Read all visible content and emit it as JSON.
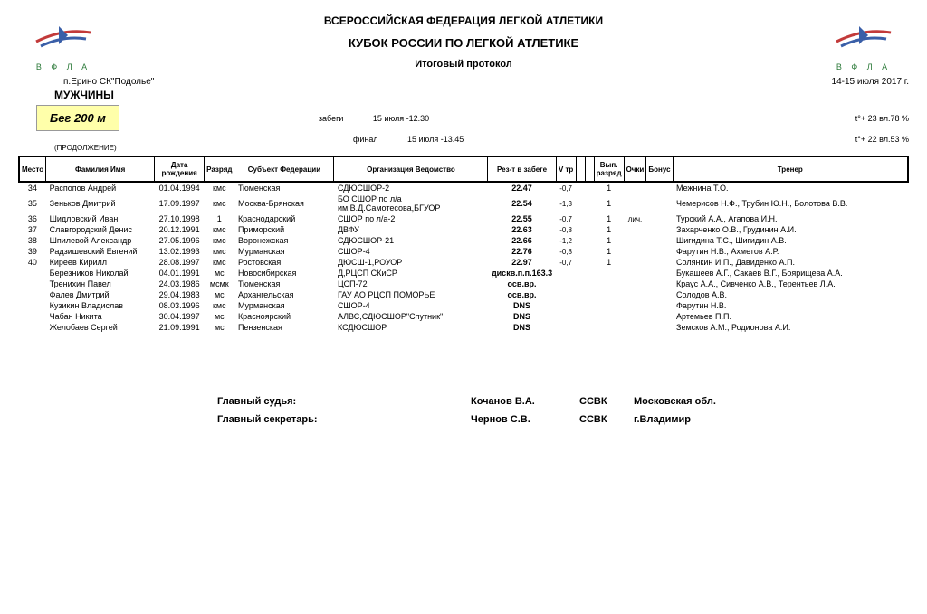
{
  "federation": "ВСЕРОССИЙСКАЯ ФЕДЕРАЦИЯ ЛЕГКОЙ АТЛЕТИКИ",
  "title": "КУБОК РОССИИ ПО ЛЕГКОЙ АТЛЕТИКЕ",
  "subtitle": "Итоговый протокол",
  "venue": "п.Ерино СК\"Подолье\"",
  "dates": "14-15 июля 2017 г.",
  "gender": "МУЖЧИНЫ",
  "event": "Бег 200 м",
  "heats_label": "забеги",
  "heats_time": "15 июля -12.30",
  "heats_cond": "t°+ 23  вл.78 %",
  "final_label": "финал",
  "final_time": "15 июля -13.45",
  "final_cond": "t°+ 22  вл.53 %",
  "continuation": "(ПРОДОЛЖЕНИЕ)",
  "logo_text": "В Ф Л А",
  "columns": {
    "place": "Место",
    "name": "Фамилия Имя",
    "dob": "Дата рождения",
    "rank": "Разряд",
    "subject": "Субъект Федерации",
    "org": "Организация Ведомство",
    "result": "Рез-т в забеге",
    "vtr": "V тр",
    "vyp": "Вып. разряд",
    "points": "Очки",
    "bonus": "Бонус",
    "coach": "Тренер"
  },
  "rows": [
    {
      "place": "34",
      "name": "Распопов  Андрей",
      "dob": "01.04.1994",
      "rank": "кмс",
      "subject": "Тюменская",
      "org": "СДЮСШОР-2",
      "result": "22.47",
      "vtr": "-0,7",
      "vyp": "1",
      "note": "",
      "coach": "Межнина Т.О."
    },
    {
      "place": "35",
      "name": "Зеньков  Дмитрий",
      "dob": "17.09.1997",
      "rank": "кмс",
      "subject": "Москва-Брянская",
      "org": "БО СШОР по л/а им.В.Д.Самотесова,БГУОР",
      "result": "22.54",
      "vtr": "-1,3",
      "vyp": "1",
      "note": "",
      "coach": "Чемерисов Н.Ф., Трубин Ю.Н., Болотова В.В."
    },
    {
      "place": "36",
      "name": "Шидловский  Иван",
      "dob": "27.10.1998",
      "rank": "1",
      "subject": "Краснодарский",
      "org": "СШОР по л/а-2",
      "result": "22.55",
      "vtr": "-0,7",
      "vyp": "1",
      "note": "лич.",
      "coach": "Турский А.А., Агапова И.Н."
    },
    {
      "place": "37",
      "name": "Славгородский  Денис",
      "dob": "20.12.1991",
      "rank": "кмс",
      "subject": "Приморский",
      "org": "ДВФУ",
      "result": "22.63",
      "vtr": "-0,8",
      "vyp": "1",
      "note": "",
      "coach": "Захарченко О.В., Грудинин А.И."
    },
    {
      "place": "38",
      "name": "Шпилевой  Александр",
      "dob": "27.05.1996",
      "rank": "кмс",
      "subject": "Воронежская",
      "org": "СДЮСШОР-21",
      "result": "22.66",
      "vtr": "-1,2",
      "vyp": "1",
      "note": "",
      "coach": "Шигидина Т.С., Шигидин А.В."
    },
    {
      "place": "39",
      "name": "Радзишевский  Евгений",
      "dob": "13.02.1993",
      "rank": "кмс",
      "subject": "Мурманская",
      "org": "СШОР-4",
      "result": "22.76",
      "vtr": "-0,8",
      "vyp": "1",
      "note": "",
      "coach": "Фарутин Н.В., Ахметов А.Р."
    },
    {
      "place": "40",
      "name": "Киреев  Кирилл",
      "dob": "28.08.1997",
      "rank": "кмс",
      "subject": "Ростовская",
      "org": "ДЮСШ-1,РОУОР",
      "result": "22.97",
      "vtr": "-0,7",
      "vyp": "1",
      "note": "",
      "coach": "Солянкин И.П., Давиденко А.П."
    },
    {
      "place": "",
      "name": "Березников  Николай",
      "dob": "04.01.1991",
      "rank": "мс",
      "subject": "Новосибирская",
      "org": "Д,РЦСП СКиСР",
      "result": "дискв.п.п.163.3",
      "vtr": "",
      "vyp": "",
      "note": "",
      "coach": "Букашеев А.Г., Сакаев В.Г., Боярищева А.А."
    },
    {
      "place": "",
      "name": "Тренихин  Павел",
      "dob": "24.03.1986",
      "rank": "мсмк",
      "subject": "Тюменская",
      "org": "ЦСП-72",
      "result": "осв.вр.",
      "vtr": "",
      "vyp": "",
      "note": "",
      "coach": "Краус А.А., Сивченко А.В., Терентьев Л.А."
    },
    {
      "place": "",
      "name": "Фалев  Дмитрий",
      "dob": "29.04.1983",
      "rank": "мс",
      "subject": "Архангельская",
      "org": "ГАУ АО РЦСП ПОМОРЬЕ",
      "result": "осв.вр.",
      "vtr": "",
      "vyp": "",
      "note": "",
      "coach": "Солодов А.В."
    },
    {
      "place": "",
      "name": "Кузикин  Владислав",
      "dob": "08.03.1996",
      "rank": "кмс",
      "subject": "Мурманская",
      "org": "СШОР-4",
      "result": "DNS",
      "vtr": "",
      "vyp": "",
      "note": "",
      "coach": "Фарутин Н.В."
    },
    {
      "place": "",
      "name": "Чабан  Никита",
      "dob": "30.04.1997",
      "rank": "мс",
      "subject": "Красноярский",
      "org": "АЛВС,СДЮСШОР\"Спутник\"",
      "result": "DNS",
      "vtr": "",
      "vyp": "",
      "note": "",
      "coach": "Артемьев П.П."
    },
    {
      "place": "",
      "name": "Желобаев  Сергей",
      "dob": "21.09.1991",
      "rank": "мс",
      "subject": "Пензенская",
      "org": "КСДЮСШОР",
      "result": "DNS",
      "vtr": "",
      "vyp": "",
      "note": "",
      "coach": "Земсков А.М., Родионова А.И."
    }
  ],
  "signatures": {
    "judge_label": "Главный судья:",
    "judge_name": "Кочанов В.А.",
    "judge_qual": "ССВК",
    "judge_region": "Московская обл.",
    "sec_label": "Главный секретарь:",
    "sec_name": "Чернов С.В.",
    "sec_qual": "ССВК",
    "sec_region": "г.Владимир"
  },
  "colors": {
    "event_bg": "#ffffaa",
    "logo_red": "#c23a3a",
    "logo_blue": "#3a5fa8",
    "logo_green": "#2c7a3a"
  }
}
